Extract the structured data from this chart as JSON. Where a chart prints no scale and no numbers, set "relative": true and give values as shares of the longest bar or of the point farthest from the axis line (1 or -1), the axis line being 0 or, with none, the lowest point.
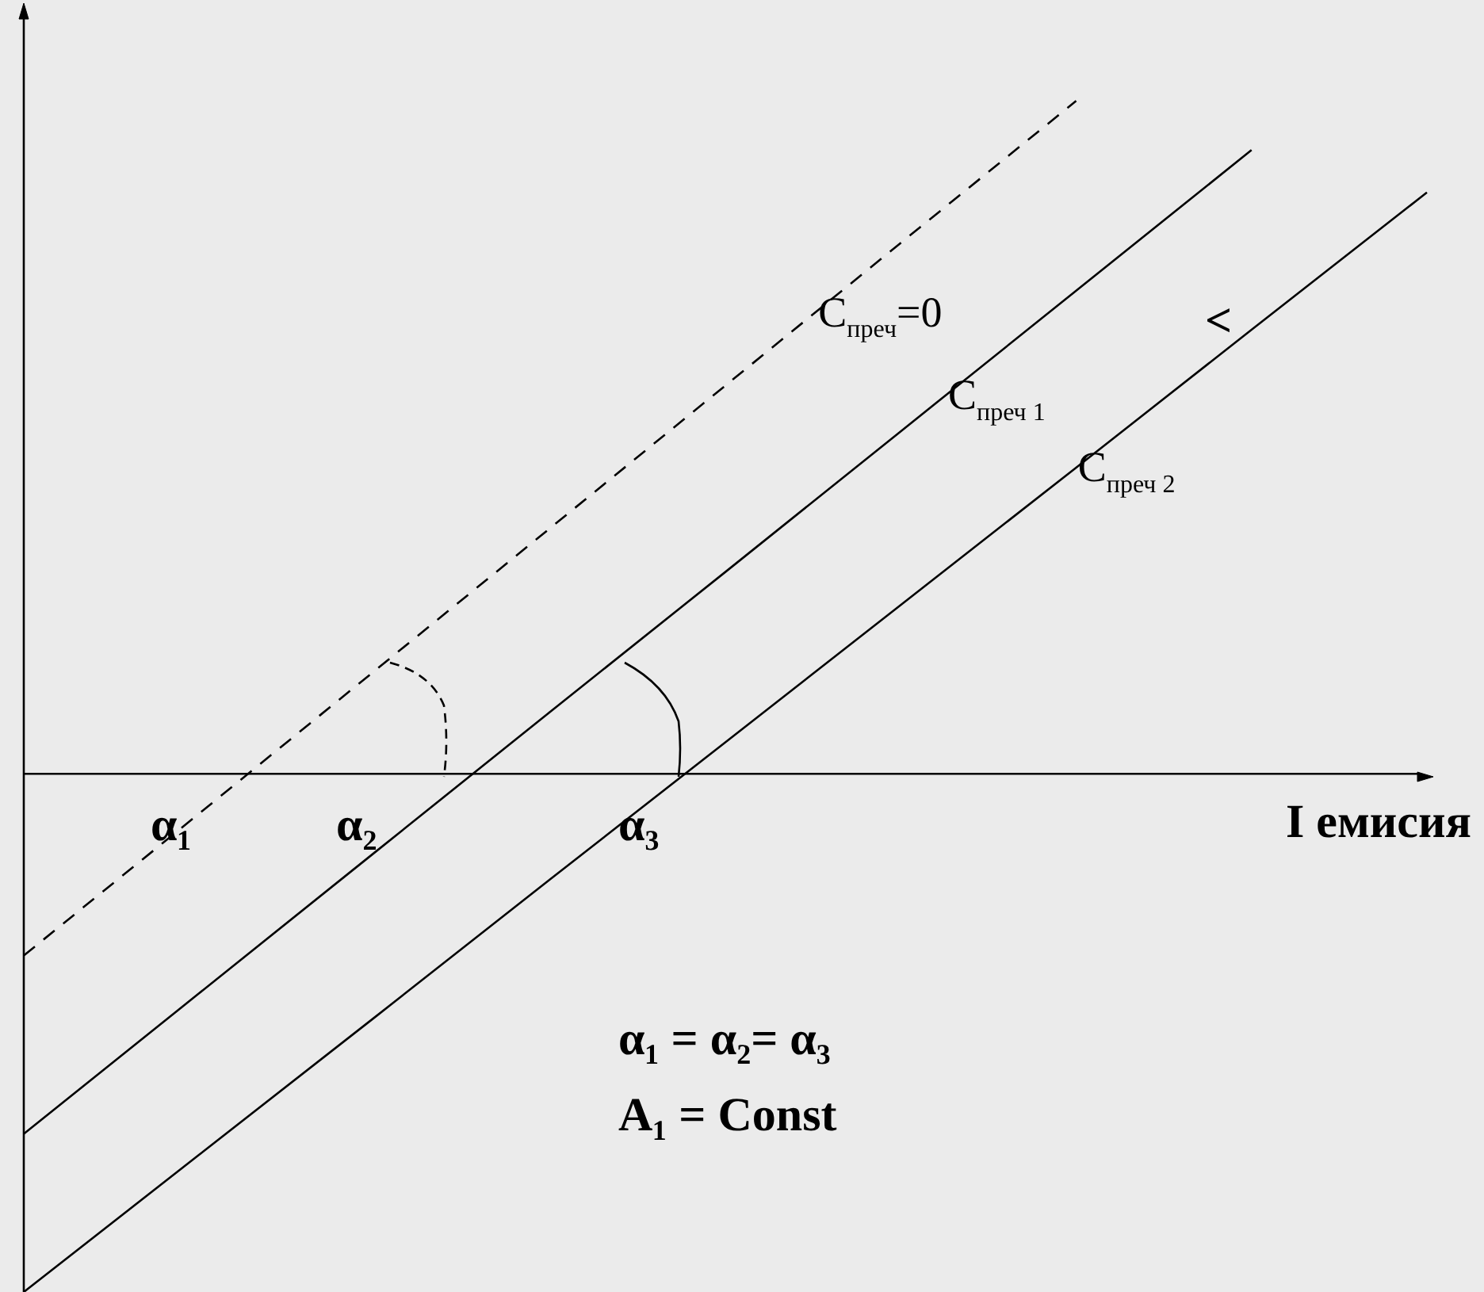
{
  "chart_data": {
    "type": "line",
    "relative": true,
    "xlabel": "I емисия",
    "marker": "none",
    "categories": [
      null,
      null,
      null,
      null,
      null,
      null,
      null,
      null,
      null
    ],
    "series": [
      {
        "name": "C$_{преч}$=0",
        "color": "#000000",
        "line_style": "dashed",
        "values": [
          -0.27,
          -0.059,
          0.153,
          0.365,
          0.577,
          0.789,
          1,
          null,
          null
        ]
      },
      {
        "name": "C$_{преч 1}$",
        "color": "#000000",
        "line_style": "solid",
        "values": [
          -0.535,
          -0.326,
          -0.117,
          0.092,
          0.3,
          0.509,
          0.718,
          0.927,
          null
        ]
      },
      {
        "name": "C$_{преч 2}$",
        "color": "#000000",
        "line_style": "solid",
        "values": [
          -0.77,
          -0.566,
          -0.362,
          -0.157,
          0.047,
          0.251,
          0.455,
          0.66,
          0.864
        ]
      }
    ],
    "annotations": [
      "α₁",
      "α₂",
      "α₃",
      "<",
      "α₁ = α₂= α₃",
      "A₁ = Const"
    ]
  }
}
